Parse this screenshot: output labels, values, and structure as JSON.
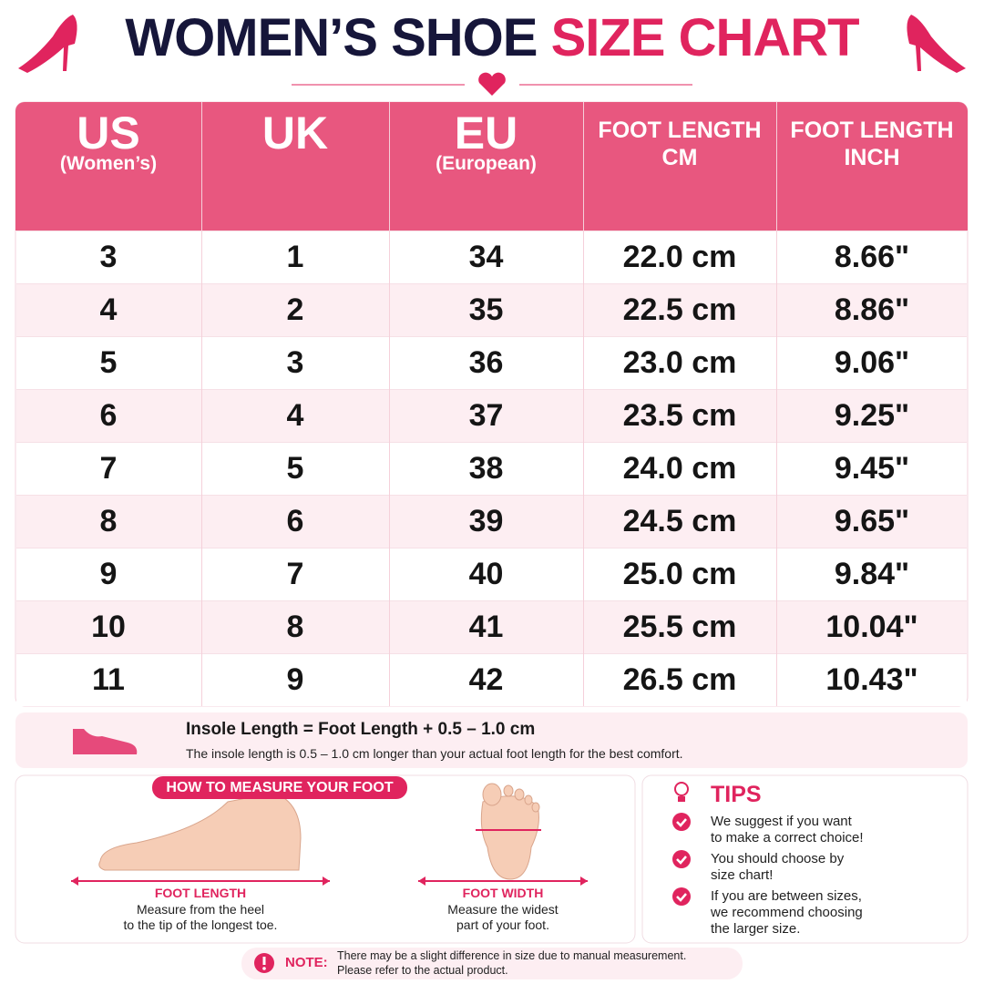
{
  "header": {
    "title_dark": "WOMEN’S SHOE",
    "title_pink": "SIZE CHART"
  },
  "table": {
    "columns": [
      {
        "title": "US",
        "subtitle": "(Women’s)"
      },
      {
        "title": "UK"
      },
      {
        "title": "EU",
        "subtitle": "(European)"
      },
      {
        "title": "FOOT LENGTH",
        "subtitle": "CM"
      },
      {
        "title": "FOOT LENGTH",
        "subtitle": "INCH"
      }
    ],
    "rows": [
      [
        "3",
        "1",
        "34",
        "22.0 cm",
        "8.66\""
      ],
      [
        "4",
        "2",
        "35",
        "22.5 cm",
        "8.86\""
      ],
      [
        "5",
        "3",
        "36",
        "23.0 cm",
        "9.06\""
      ],
      [
        "6",
        "4",
        "37",
        "23.5 cm",
        "9.25\""
      ],
      [
        "7",
        "5",
        "38",
        "24.0 cm",
        "9.45\""
      ],
      [
        "8",
        "6",
        "39",
        "24.5 cm",
        "9.65\""
      ],
      [
        "9",
        "7",
        "40",
        "25.0 cm",
        "9.84\""
      ],
      [
        "10",
        "8",
        "41",
        "25.5 cm",
        "10.04\""
      ],
      [
        "11",
        "9",
        "42",
        "26.5 cm",
        "10.43\""
      ]
    ]
  },
  "insole": {
    "formula": "Insole Length = Foot Length + 0.5 – 1.0 cm",
    "description": "The insole length is 0.5 – 1.0 cm longer than your actual foot length for the best comfort."
  },
  "measure": {
    "title": "HOW TO MEASURE YOUR FOOT",
    "length": {
      "label": "FOOT LENGTH",
      "lines": [
        "Measure from the heel",
        "to the tip of the longest toe."
      ]
    },
    "width": {
      "label": "FOOT WIDTH",
      "lines": [
        "Measure the widest",
        "part of your foot."
      ]
    }
  },
  "tips": {
    "title": "TIPS",
    "items": [
      [
        "We suggest if you want",
        "to make a correct choice!"
      ],
      [
        "You should choose by",
        "size chart!"
      ],
      [
        "If you are between sizes,",
        "we recommend choosing",
        "the larger size."
      ]
    ]
  },
  "note": {
    "label": "NOTE:",
    "lines": [
      "There may be a slight difference in size due to manual measurement.",
      "Please refer to the actual product."
    ]
  }
}
